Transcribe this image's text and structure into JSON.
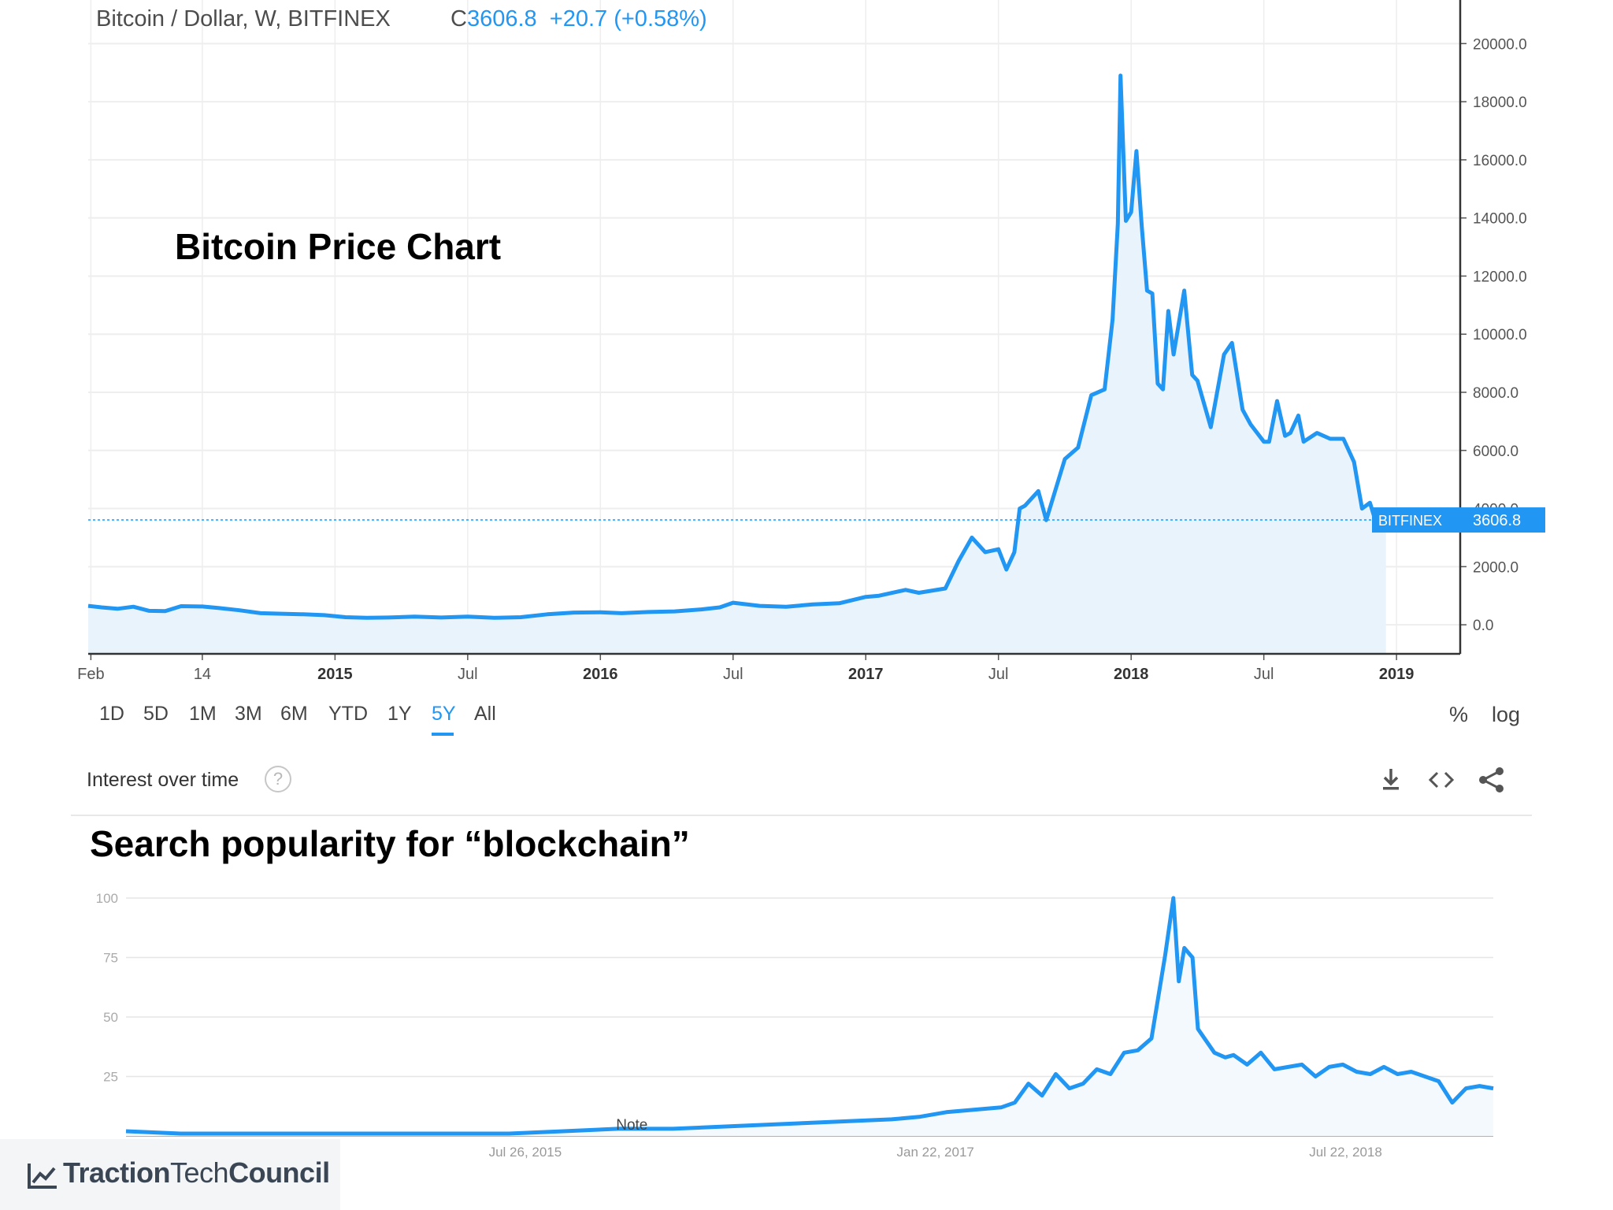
{
  "top": {
    "symbol": "Bitcoin / Dollar, W, BITFINEX",
    "quote_prefix": "C",
    "close": "3606.8",
    "change": "+20.7 (+0.58%)",
    "overlay_title": "Bitcoin Price Chart",
    "price_tag_label": "BITFINEX",
    "price_tag_value": "3606.8",
    "range_buttons": [
      "1D",
      "5D",
      "1M",
      "3M",
      "6M",
      "YTD",
      "1Y",
      "5Y",
      "All"
    ],
    "active_range": "5Y",
    "percent_label": "%",
    "log_label": "log"
  },
  "bottom": {
    "header_title": "Interest over time",
    "help_glyph": "?",
    "overlay_title": "Search popularity for “blockchain”",
    "note_label": "Note",
    "icons": [
      "download-icon",
      "embed-icon",
      "share-icon"
    ]
  },
  "logo": {
    "part1": "Traction",
    "part2": "Tech",
    "part3": "Council"
  },
  "colors": {
    "line": "#2196f3",
    "fill": "#e8f3fc",
    "grid": "#eeeeee",
    "axis": "#333333"
  },
  "chart_data": [
    {
      "type": "area",
      "title": "Bitcoin / Dollar, W, BITFINEX",
      "x_ticks": [
        "Feb",
        "14",
        "2015",
        "Jul",
        "2016",
        "Jul",
        "2017",
        "Jul",
        "2018",
        "Jul",
        "2019"
      ],
      "y_ticks": [
        "0.0",
        "2000.0",
        "4000.0",
        "6000.0",
        "8000.0",
        "10000.0",
        "12000.0",
        "14000.0",
        "16000.0",
        "18000.0",
        "20000.0"
      ],
      "ylim": [
        -1000,
        21500
      ],
      "xlim": [
        2014.07,
        2019.24
      ],
      "last_value": 3606.8,
      "series": [
        {
          "x": [
            2014.07,
            2014.12,
            2014.18,
            2014.24,
            2014.3,
            2014.36,
            2014.42,
            2014.5,
            2014.56,
            2014.64,
            2014.72,
            2014.8,
            2014.88,
            2014.96,
            2015.04,
            2015.12,
            2015.2,
            2015.3,
            2015.4,
            2015.5,
            2015.6,
            2015.7,
            2015.8,
            2015.9,
            2016.0,
            2016.08,
            2016.18,
            2016.28,
            2016.38,
            2016.45,
            2016.5,
            2016.6,
            2016.7,
            2016.8,
            2016.9,
            2017.0,
            2017.05,
            2017.15,
            2017.2,
            2017.3,
            2017.35,
            2017.4,
            2017.45,
            2017.5,
            2017.53,
            2017.56,
            2017.58,
            2017.6,
            2017.65,
            2017.68,
            2017.75,
            2017.8,
            2017.85,
            2017.9,
            2017.93,
            2017.95,
            2017.96,
            2017.98,
            2018.0,
            2018.02,
            2018.04,
            2018.06,
            2018.08,
            2018.1,
            2018.12,
            2018.14,
            2018.16,
            2018.2,
            2018.23,
            2018.25,
            2018.3,
            2018.35,
            2018.38,
            2018.42,
            2018.45,
            2018.5,
            2018.52,
            2018.55,
            2018.58,
            2018.6,
            2018.63,
            2018.65,
            2018.7,
            2018.75,
            2018.8,
            2018.84,
            2018.87,
            2018.9,
            2018.93,
            2018.96
          ],
          "values": [
            650,
            600,
            550,
            620,
            480,
            470,
            640,
            630,
            580,
            500,
            400,
            380,
            360,
            330,
            260,
            240,
            250,
            280,
            250,
            280,
            240,
            260,
            360,
            420,
            430,
            400,
            440,
            460,
            530,
            600,
            760,
            650,
            620,
            700,
            740,
            960,
            1000,
            1200,
            1100,
            1250,
            2200,
            3000,
            2500,
            2600,
            1900,
            2500,
            4000,
            4100,
            4600,
            3600,
            5700,
            6100,
            7900,
            8100,
            10500,
            13800,
            18900,
            13900,
            14200,
            16300,
            13700,
            11500,
            11400,
            8300,
            8100,
            10800,
            9300,
            11500,
            8600,
            8400,
            6800,
            9300,
            9700,
            7400,
            6900,
            6300,
            6300,
            7700,
            6500,
            6600,
            7200,
            6300,
            6600,
            6400,
            6400,
            5600,
            4000,
            4200,
            3300,
            3607
          ],
          "name": ""
        }
      ]
    },
    {
      "type": "line",
      "title": "Interest over time",
      "x_ticks": [
        "Jul 26, 2015",
        "Jan 22, 2017",
        "Jul 22, 2018"
      ],
      "y_ticks": [
        "25",
        "50",
        "75",
        "100"
      ],
      "ylim": [
        0,
        100
      ],
      "xlim": [
        2014.1,
        2019.1
      ],
      "series": [
        {
          "x": [
            2014.1,
            2014.3,
            2014.6,
            2014.9,
            2015.2,
            2015.5,
            2015.7,
            2015.9,
            2016.1,
            2016.3,
            2016.5,
            2016.7,
            2016.9,
            2017.0,
            2017.1,
            2017.2,
            2017.3,
            2017.35,
            2017.4,
            2017.45,
            2017.5,
            2017.55,
            2017.6,
            2017.65,
            2017.7,
            2017.75,
            2017.8,
            2017.85,
            2017.9,
            2017.93,
            2017.95,
            2017.97,
            2018.0,
            2018.02,
            2018.05,
            2018.08,
            2018.12,
            2018.15,
            2018.2,
            2018.25,
            2018.3,
            2018.35,
            2018.4,
            2018.45,
            2018.5,
            2018.55,
            2018.6,
            2018.65,
            2018.7,
            2018.75,
            2018.8,
            2018.85,
            2018.9,
            2018.95,
            2019.0,
            2019.05,
            2019.1
          ],
          "values": [
            2,
            1,
            1,
            1,
            1,
            1,
            2,
            3,
            3,
            4,
            5,
            6,
            7,
            8,
            10,
            11,
            12,
            14,
            22,
            17,
            26,
            20,
            22,
            28,
            26,
            35,
            36,
            41,
            76,
            100,
            65,
            79,
            75,
            45,
            40,
            35,
            33,
            34,
            30,
            35,
            28,
            29,
            30,
            25,
            29,
            30,
            27,
            26,
            29,
            26,
            27,
            25,
            23,
            14,
            20,
            21,
            20
          ],
          "name": ""
        }
      ]
    }
  ]
}
